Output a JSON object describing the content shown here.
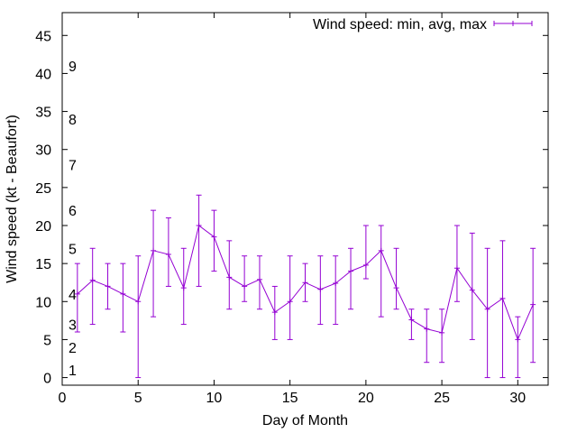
{
  "chart_data": {
    "type": "line",
    "title": "",
    "xlabel": "Day of Month",
    "ylabel": "Wind speed (kt - Beaufort)",
    "xlim": [
      0,
      32
    ],
    "ylim": [
      -1,
      48
    ],
    "xticks": [
      0,
      5,
      10,
      15,
      20,
      25,
      30
    ],
    "yticks": [
      0,
      5,
      10,
      15,
      20,
      25,
      30,
      35,
      40,
      45
    ],
    "grid": false,
    "legend_position": "top-right",
    "series_color": "#9400d3",
    "series": [
      {
        "name": "Wind speed: min, avg, max",
        "x": [
          1,
          2,
          3,
          4,
          5,
          6,
          7,
          8,
          9,
          10,
          11,
          12,
          13,
          14,
          15,
          16,
          17,
          18,
          19,
          20,
          21,
          22,
          23,
          24,
          25,
          26,
          27,
          28,
          29,
          30,
          31
        ],
        "avg": [
          11,
          12.8,
          12,
          11,
          10,
          16.7,
          16.2,
          11.8,
          20,
          18.5,
          13.2,
          12,
          12.9,
          8.6,
          10,
          12.5,
          11.6,
          12.4,
          14,
          14.8,
          16.7,
          11.8,
          7.6,
          6.4,
          5.9,
          14.4,
          11.5,
          9,
          10.4,
          5,
          9.6
        ],
        "min": [
          6,
          7,
          9,
          6,
          0,
          8,
          12,
          7,
          12,
          14,
          9,
          10,
          9,
          5,
          5,
          10,
          7,
          7,
          9,
          13,
          8,
          9,
          5,
          2,
          2,
          10,
          5,
          0,
          0,
          0,
          2
        ],
        "max": [
          15,
          17,
          15,
          15,
          16,
          22,
          21,
          17,
          24,
          22,
          18,
          16,
          16,
          12,
          16,
          15,
          16,
          16,
          17,
          20,
          20,
          17,
          9,
          9,
          9,
          20,
          19,
          17,
          18,
          8,
          17
        ]
      }
    ],
    "annotations": [
      {
        "text": "1",
        "y": 1
      },
      {
        "text": "2",
        "y": 4
      },
      {
        "text": "3",
        "y": 7
      },
      {
        "text": "4",
        "y": 11
      },
      {
        "text": "5",
        "y": 17
      },
      {
        "text": "6",
        "y": 22
      },
      {
        "text": "7",
        "y": 28
      },
      {
        "text": "8",
        "y": 34
      },
      {
        "text": "9",
        "y": 41
      }
    ]
  }
}
